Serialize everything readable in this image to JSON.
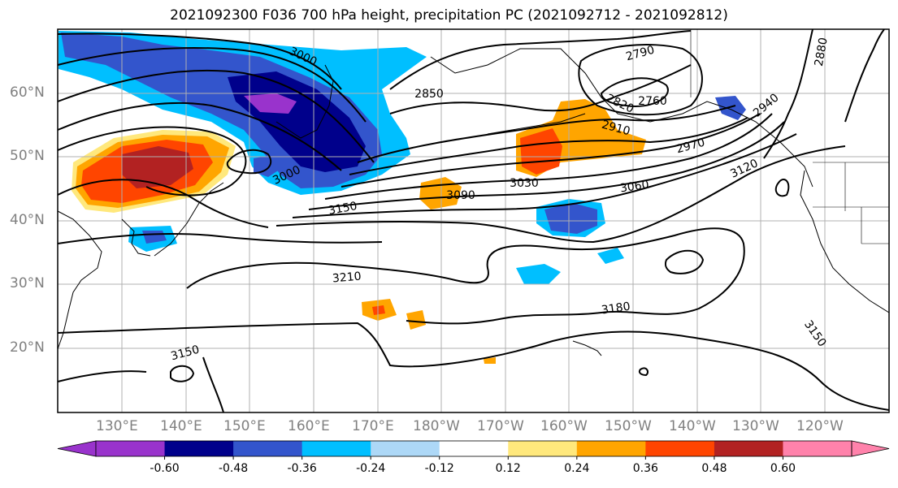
{
  "title": "2021092300 F036 700 hPa height, precipitation PC (2021092712 - 2021092812)",
  "map": {
    "lat_labels": [
      "60°N",
      "50°N",
      "40°N",
      "30°N",
      "20°N"
    ],
    "lon_labels": [
      "130°E",
      "140°E",
      "150°E",
      "160°E",
      "170°E",
      "180°W",
      "170°W",
      "160°W",
      "150°W",
      "140°W",
      "130°W",
      "120°W"
    ],
    "contour_labels": [
      "3000",
      "2850",
      "2790",
      "2760",
      "2820",
      "2910",
      "2970",
      "2940",
      "3120",
      "2880",
      "3000",
      "3150",
      "3090",
      "3030",
      "3060",
      "3210",
      "3180",
      "3150",
      "3150"
    ],
    "colors": {
      "grid": "#b0b0b0",
      "coast": "#000000",
      "contour": "#000000"
    }
  },
  "colorbar": {
    "colors": [
      "#9933cc",
      "#00008b",
      "#3355cc",
      "#00bfff",
      "#add8f7",
      "#ffffff",
      "#ffe87c",
      "#ffa500",
      "#ff4500",
      "#b22222",
      "#ff82ab"
    ],
    "tick_labels": [
      "-0.60",
      "-0.48",
      "-0.36",
      "-0.24",
      "-0.12",
      "0.12",
      "0.24",
      "0.36",
      "0.48",
      "0.60"
    ]
  }
}
